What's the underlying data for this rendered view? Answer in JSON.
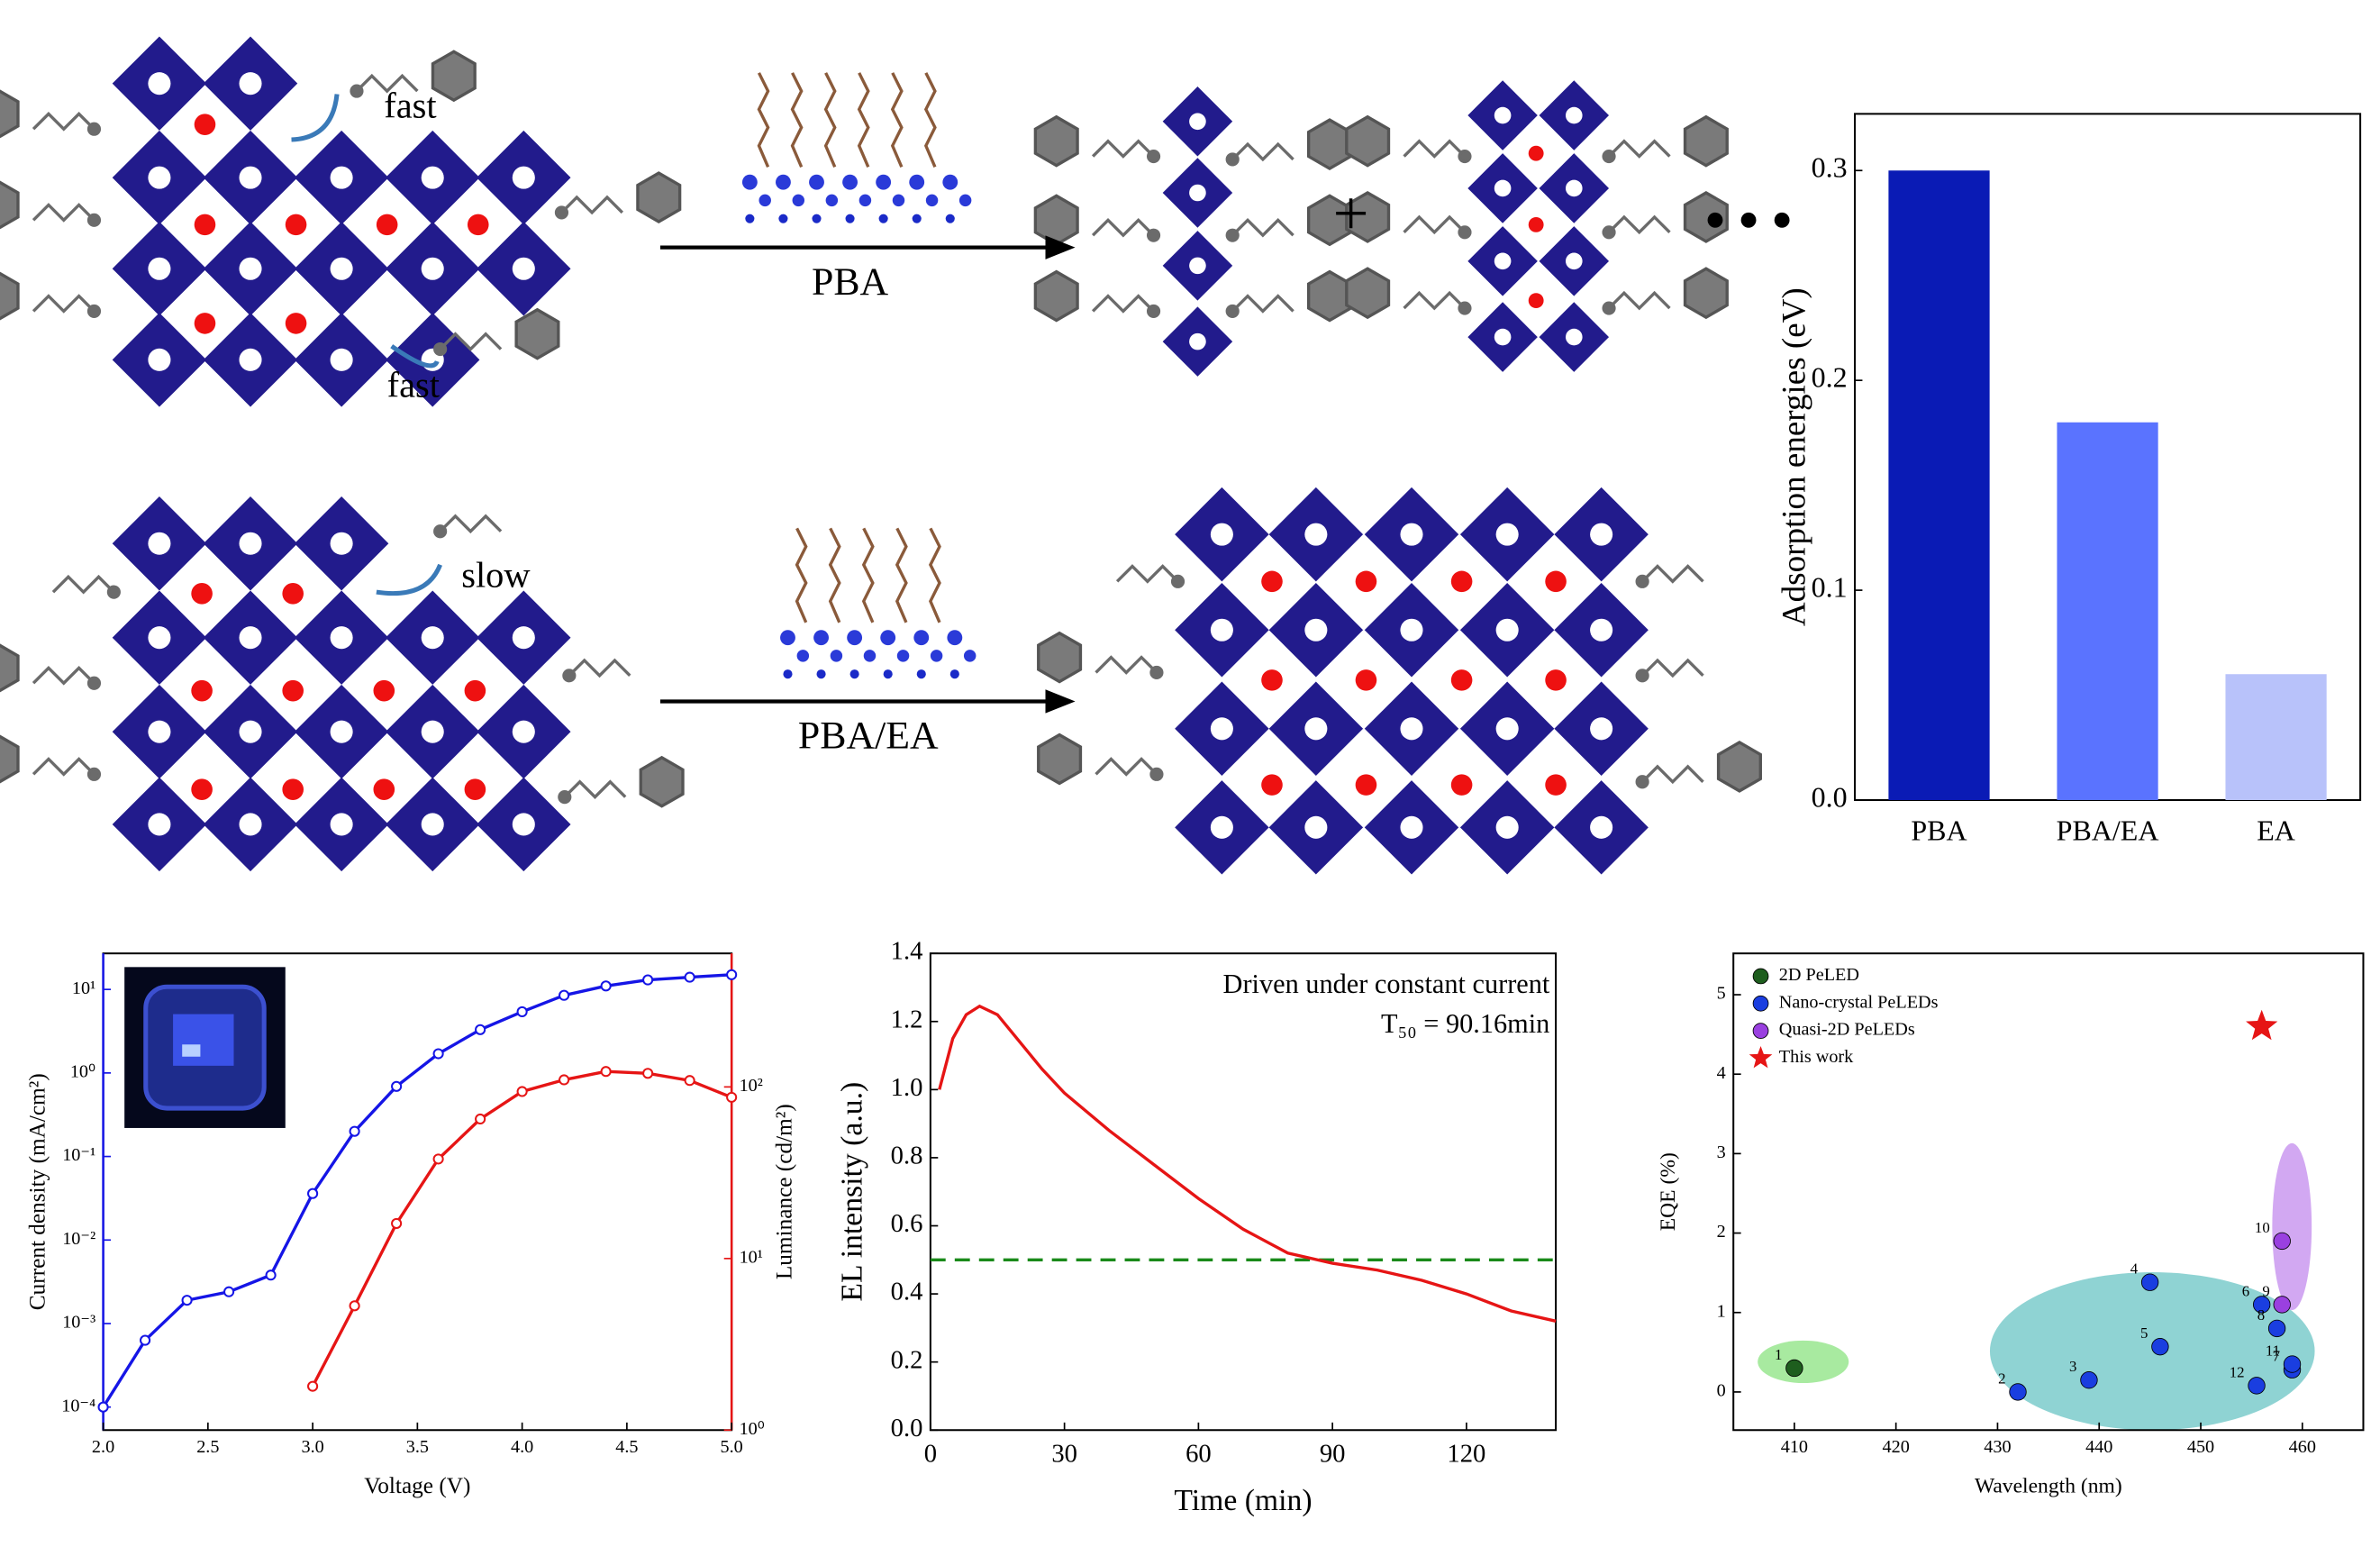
{
  "diagram": {
    "fast_top": "fast",
    "fast_bottom": "fast",
    "slow": "slow",
    "arrow_top_label": "PBA",
    "arrow_bottom_label": "PBA/EA",
    "plus": "+"
  },
  "chart_data": [
    {
      "type": "bar",
      "ylabel": "Adsorption energies (eV)",
      "categories": [
        "PBA",
        "PBA/EA",
        "EA"
      ],
      "values": [
        0.3,
        0.18,
        0.06
      ],
      "colors": [
        "#0a1bb5",
        "#5a73ff",
        "#b8c2fa"
      ],
      "ylim": [
        0,
        0.327
      ],
      "yticks": [
        {
          "value": 0,
          "label": "0.0"
        },
        0.1,
        0.2,
        0.3
      ]
    },
    {
      "type": "line",
      "xlabel": "Voltage (V)",
      "ylabel": "Current density (mA/cm²)",
      "y2label": "Luminance (cd/m²)",
      "yscale": "log",
      "y2scale": "log",
      "xlim": [
        2.0,
        5.0
      ],
      "xticks": [
        {
          "value": 2,
          "label": "2.0"
        },
        2.5,
        {
          "value": 3,
          "label": "3.0"
        },
        3.5,
        {
          "value": 4,
          "label": "4.0"
        },
        4.5,
        {
          "value": 5,
          "label": "5.0"
        }
      ],
      "ylim": [
        5.3e-05,
        27
      ],
      "yticks": [
        {
          "value": 0.0001,
          "label": "10⁻⁴"
        },
        {
          "value": 0.001,
          "label": "10⁻³"
        },
        {
          "value": 0.01,
          "label": "10⁻²"
        },
        {
          "value": 0.1,
          "label": "10⁻¹"
        },
        {
          "value": 1,
          "label": "10⁰"
        },
        {
          "value": 10,
          "label": "10¹"
        }
      ],
      "y2lim": [
        1,
        600
      ],
      "y2ticks": [
        {
          "value": 1,
          "label": "10⁰"
        },
        {
          "value": 10,
          "label": "10¹"
        },
        {
          "value": 100,
          "label": "10²"
        }
      ],
      "series": [
        {
          "name": "Current density",
          "color": "#1515e6",
          "axis": "y",
          "x": [
            2.0,
            2.2,
            2.4,
            2.6,
            2.8,
            3.0,
            3.2,
            3.4,
            3.6,
            3.8,
            4.0,
            4.2,
            4.4,
            4.6,
            4.8,
            5.0
          ],
          "values": [
            0.0001,
            0.00063,
            0.0019,
            0.0024,
            0.0038,
            0.036,
            0.2,
            0.69,
            1.7,
            3.3,
            5.4,
            8.5,
            11,
            13,
            14,
            15
          ]
        },
        {
          "name": "Luminance",
          "color": "#e61515",
          "axis": "y2",
          "x": [
            3.0,
            3.2,
            3.4,
            3.6,
            3.8,
            4.0,
            4.2,
            4.4,
            4.6,
            4.8,
            5.0
          ],
          "values": [
            1.8,
            5.3,
            16,
            38,
            65,
            94,
            110,
            123,
            120,
            109,
            87
          ]
        }
      ]
    },
    {
      "type": "line",
      "xlabel": "Time (min)",
      "ylabel": "EL intensity (a.u.)",
      "annotations": [
        "Driven under constant current",
        "T₅₀ = 90.16min"
      ],
      "xlim": [
        0,
        140
      ],
      "xticks": [
        0,
        30,
        60,
        90,
        120
      ],
      "ylim": [
        0,
        1.4
      ],
      "yticks": [
        {
          "value": 0,
          "label": "0.0"
        },
        0.2,
        0.4,
        0.6,
        0.8,
        {
          "value": 1,
          "label": "1.0"
        },
        1.2,
        1.4
      ],
      "reference_line": {
        "value": 0.5,
        "color": "#1a8a1a"
      },
      "series": [
        {
          "color": "#e61515",
          "x": [
            2,
            5,
            8,
            11,
            15,
            20,
            25,
            30,
            40,
            50,
            60,
            70,
            80,
            90,
            100,
            110,
            120,
            130,
            140
          ],
          "values": [
            1.0,
            1.15,
            1.22,
            1.245,
            1.22,
            1.14,
            1.06,
            0.99,
            0.88,
            0.78,
            0.68,
            0.59,
            0.52,
            0.49,
            0.47,
            0.44,
            0.4,
            0.35,
            0.32
          ]
        }
      ]
    },
    {
      "type": "scatter",
      "xlabel": "Wavelength (nm)",
      "ylabel": "EQE (%)",
      "legend": "upper left",
      "xlim": [
        404,
        466
      ],
      "xticks": [
        410,
        420,
        430,
        440,
        450,
        460
      ],
      "ylim": [
        -0.48,
        5.52
      ],
      "yticks": [
        0,
        1,
        2,
        3,
        4,
        5
      ],
      "series": [
        {
          "name": "2D PeLED",
          "color": "#1e5e1e",
          "marker": "circle",
          "x": [
            410
          ],
          "values": [
            0.3
          ],
          "labels": [
            "1"
          ]
        },
        {
          "name": "Nano-crystal PeLEDs",
          "color": "#1a3ee0",
          "marker": "circle",
          "x": [
            432,
            439,
            445,
            446,
            456,
            459,
            457.5,
            459,
            455.5
          ],
          "values": [
            0.0,
            0.15,
            1.38,
            0.57,
            1.1,
            0.28,
            0.8,
            0.35,
            0.08
          ],
          "labels": [
            "2",
            "3",
            "4",
            "5",
            "6",
            "7",
            "8",
            "11",
            "12"
          ]
        },
        {
          "name": "Quasi-2D PeLEDs",
          "color": "#9a40e0",
          "marker": "circle",
          "x": [
            458,
            458
          ],
          "values": [
            1.1,
            1.9
          ],
          "labels": [
            "9",
            "10"
          ]
        },
        {
          "name": "This work",
          "color": "#e61515",
          "marker": "star",
          "x": [
            456
          ],
          "values": [
            4.6
          ]
        }
      ]
    }
  ]
}
